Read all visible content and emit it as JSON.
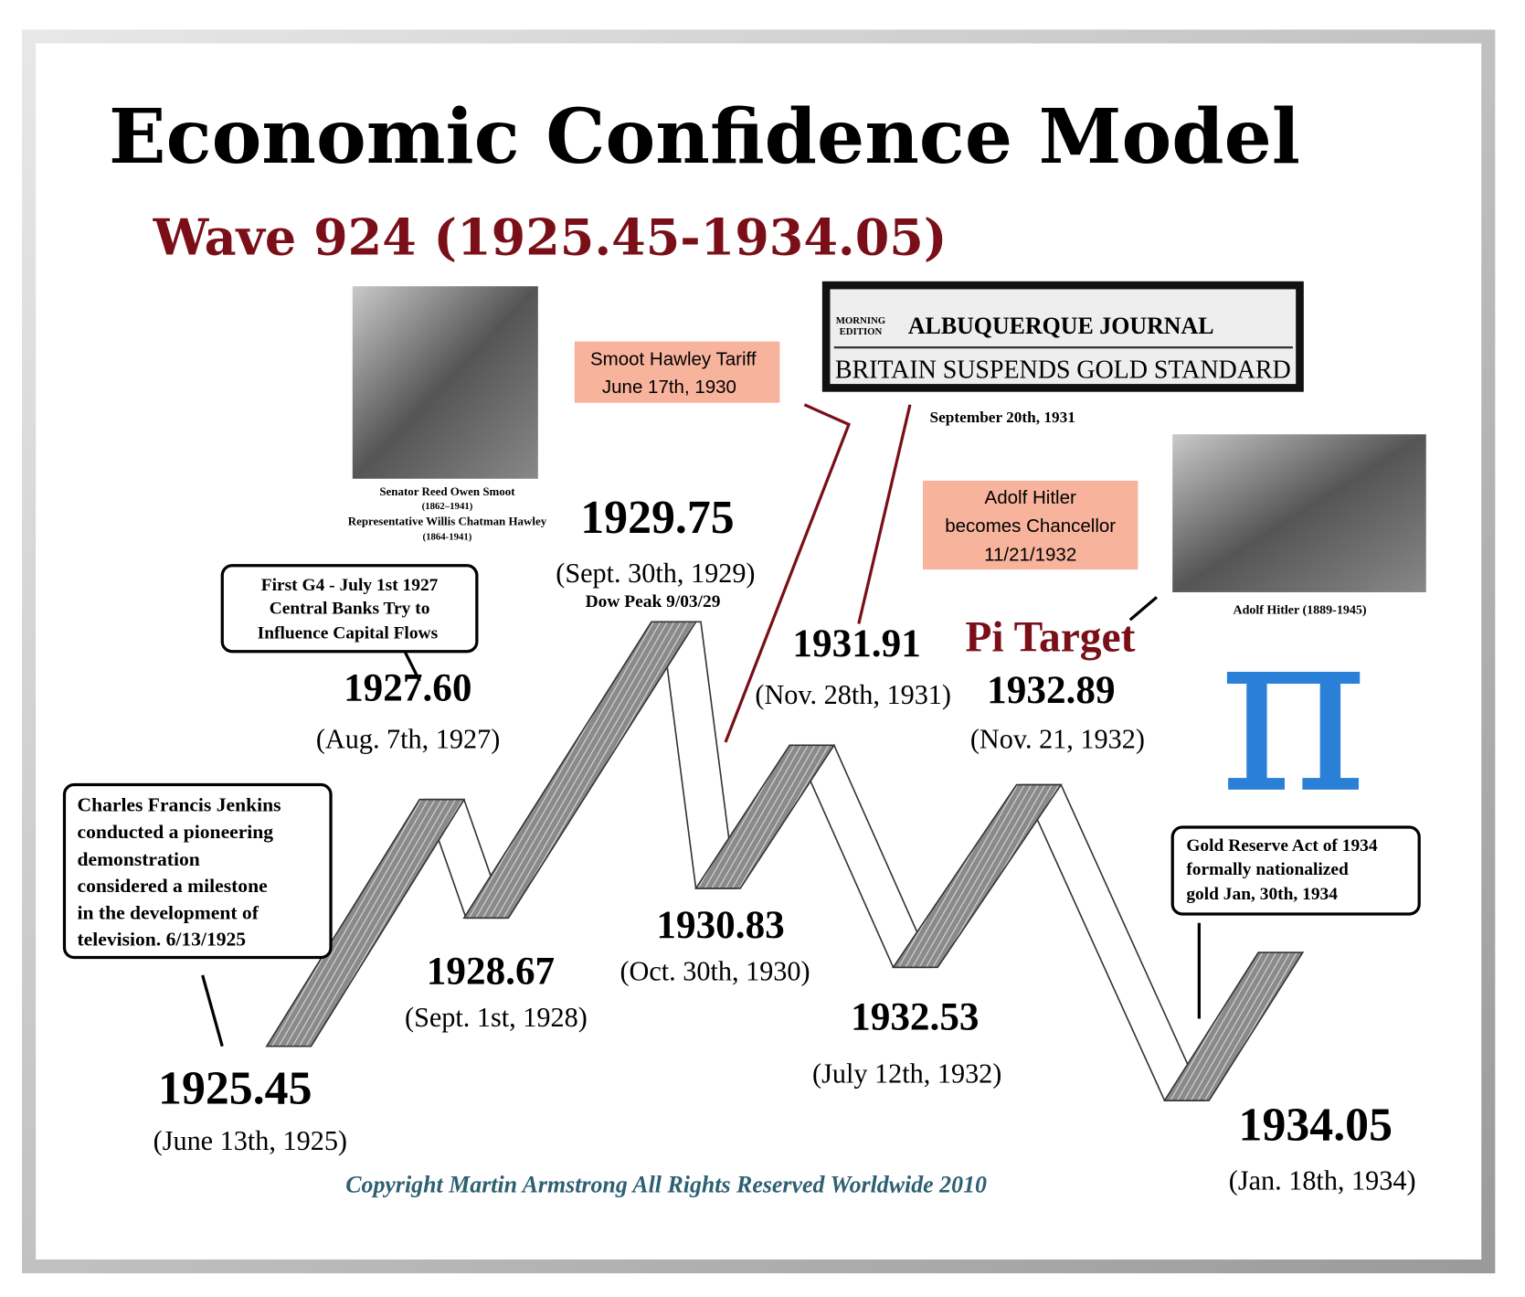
{
  "header": {
    "title": "Economic Confidence Model",
    "subtitle": "Wave 924 (1925.45-1934.05)"
  },
  "points": [
    {
      "value": "1925.45",
      "date": "(June 13th, 1925)"
    },
    {
      "value": "1927.60",
      "date": "(Aug. 7th, 1927)"
    },
    {
      "value": "1928.67",
      "date": "(Sept. 1st, 1928)"
    },
    {
      "value": "1929.75",
      "date": "(Sept. 30th, 1929)",
      "note": "Dow Peak 9/03/29"
    },
    {
      "value": "1930.83",
      "date": "(Oct. 30th, 1930)"
    },
    {
      "value": "1931.91",
      "date": "(Nov. 28th, 1931)"
    },
    {
      "value": "1932.53",
      "date": "(July 12th, 1932)"
    },
    {
      "value": "1932.89",
      "date": "(Nov. 21, 1932)"
    },
    {
      "value": "1934.05",
      "date": "(Jan. 18th, 1934)"
    }
  ],
  "pi_target": "Pi Target",
  "callouts": {
    "jenkins": [
      "Charles Francis Jenkins",
      "conducted a pioneering",
      "demonstration",
      "considered a milestone",
      "in the development of",
      "television. 6/13/1925"
    ],
    "g4": [
      "First G4 - July 1st 1927",
      "Central Banks Try to",
      "Influence Capital Flows"
    ],
    "gold_reserve": [
      "Gold Reserve Act of 1934",
      "formally nationalized",
      "gold Jan, 30th, 1934"
    ],
    "smoot_hawley": [
      "Smoot Hawley Tariff",
      "June 17th, 1930"
    ],
    "hitler": [
      "Adolf Hitler",
      "becomes Chancellor",
      "11/21/1932"
    ]
  },
  "photos": {
    "smoot_caption": [
      "Senator Reed Owen Smoot",
      "(1862–1941)",
      "Representative Willis Chatman Hawley",
      "(1864-1941)"
    ],
    "hitler_caption": "Adolf Hitler (1889-1945)",
    "newspaper": {
      "edition": [
        "MORNING",
        "EDITION"
      ],
      "masthead": "ALBUQUERQUE JOURNAL",
      "headline": "BRITAIN SUSPENDS GOLD STANDARD",
      "caption": "September 20th, 1931"
    }
  },
  "copyright": "Copyright Martin Armstrong All Rights Reserved Worldwide 2010"
}
